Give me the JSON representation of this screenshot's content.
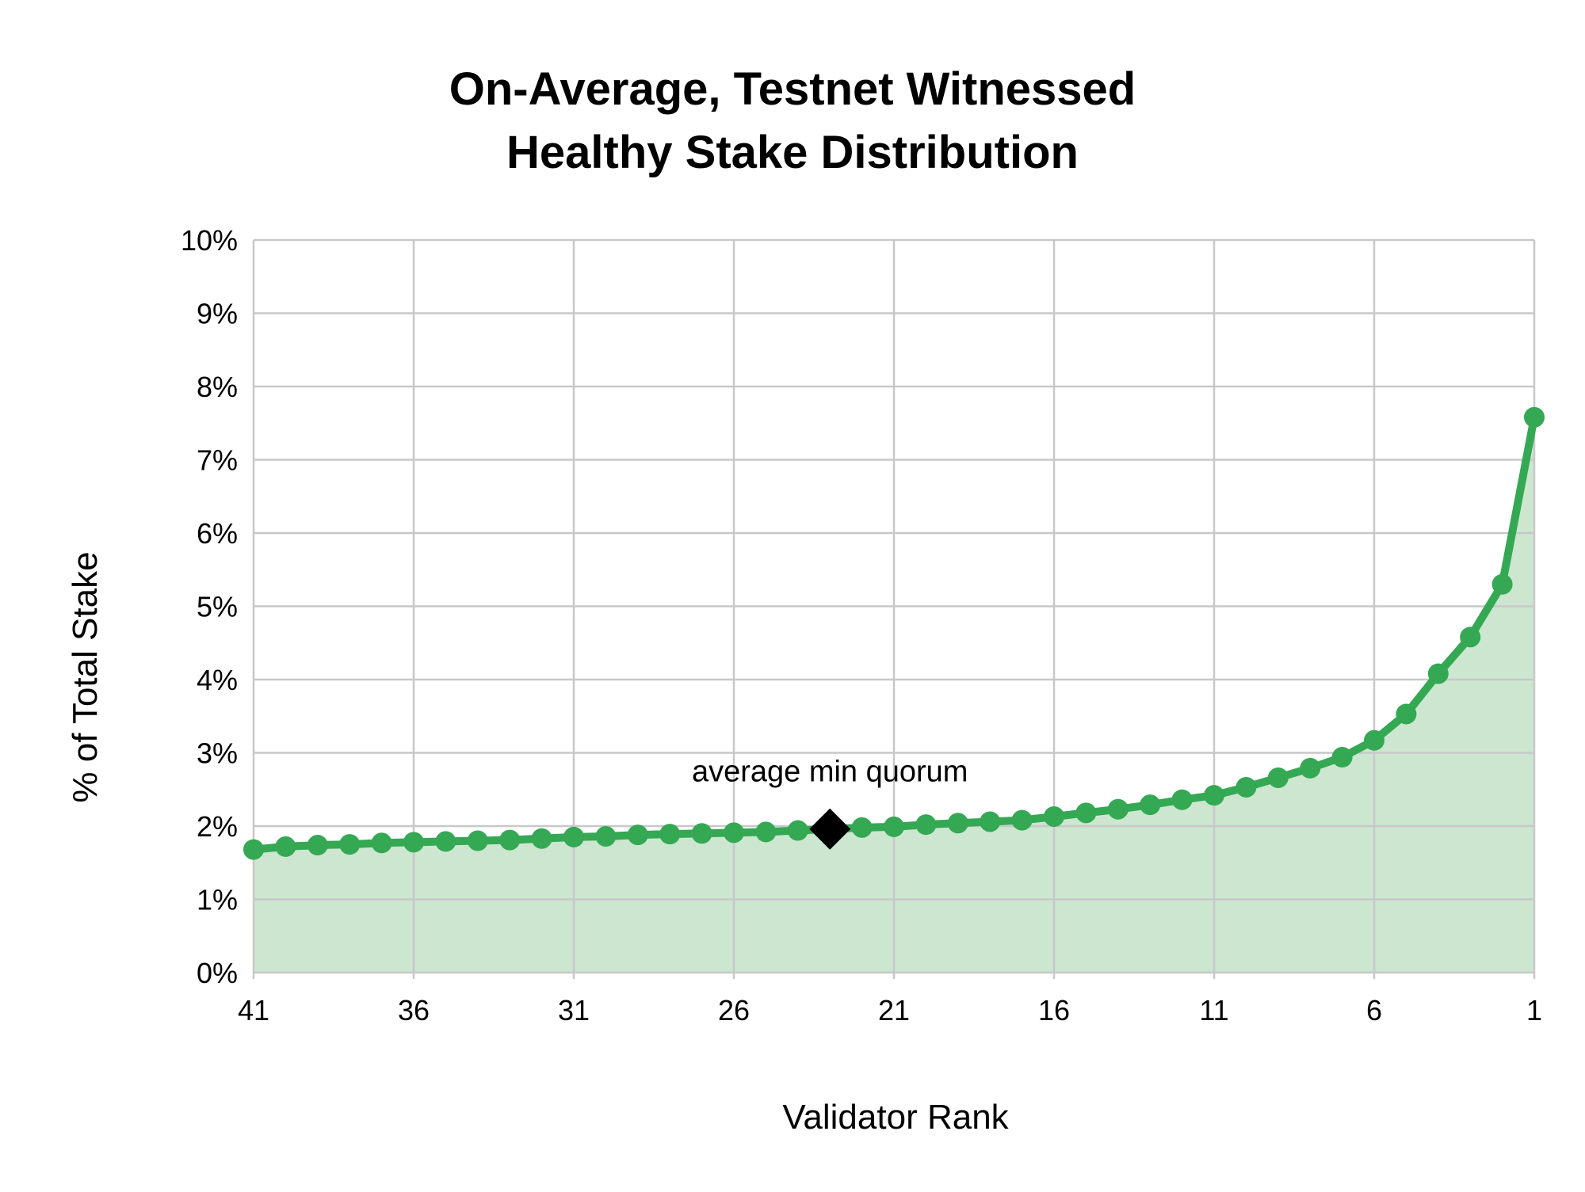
{
  "chart_data": {
    "type": "line",
    "title_lines": [
      "On-Average, Testnet Witnessed",
      "Healthy Stake Distribution"
    ],
    "xlabel": "Validator Rank",
    "ylabel": "% of Total Stake",
    "x_reversed": true,
    "xlim": [
      41,
      1
    ],
    "ylim": [
      0,
      10
    ],
    "x_ticks": [
      41,
      36,
      31,
      26,
      21,
      16,
      11,
      6,
      1
    ],
    "y_ticks": [
      0,
      1,
      2,
      3,
      4,
      5,
      6,
      7,
      8,
      9,
      10
    ],
    "y_tick_labels": [
      "0%",
      "1%",
      "2%",
      "3%",
      "4%",
      "5%",
      "6%",
      "7%",
      "8%",
      "9%",
      "10%"
    ],
    "x_tick_labels": [
      "41",
      "36",
      "31",
      "26",
      "21",
      "16",
      "11",
      "6",
      "1"
    ],
    "grid": true,
    "series": [
      {
        "x": [
          41,
          40,
          39,
          38,
          37,
          36,
          35,
          34,
          33,
          32,
          31,
          30,
          29,
          28,
          27,
          26,
          25,
          24,
          23,
          22,
          21,
          20,
          19,
          18,
          17,
          16,
          15,
          14,
          13,
          12,
          11,
          10,
          9,
          8,
          7,
          6,
          5,
          4,
          3,
          2,
          1
        ],
        "values": [
          1.68,
          1.72,
          1.74,
          1.75,
          1.77,
          1.78,
          1.79,
          1.8,
          1.81,
          1.83,
          1.85,
          1.86,
          1.88,
          1.89,
          1.9,
          1.91,
          1.92,
          1.94,
          1.96,
          1.98,
          1.99,
          2.02,
          2.04,
          2.06,
          2.08,
          2.13,
          2.18,
          2.23,
          2.29,
          2.36,
          2.42,
          2.53,
          2.66,
          2.79,
          2.94,
          3.17,
          3.53,
          4.08,
          4.58,
          5.3,
          7.58
        ]
      }
    ],
    "annotation": {
      "label": "average min quorum",
      "x": 23,
      "y": 1.96
    },
    "colors": {
      "line": "#34a853",
      "fill": "#cce6d0",
      "marker": "#000000"
    }
  }
}
